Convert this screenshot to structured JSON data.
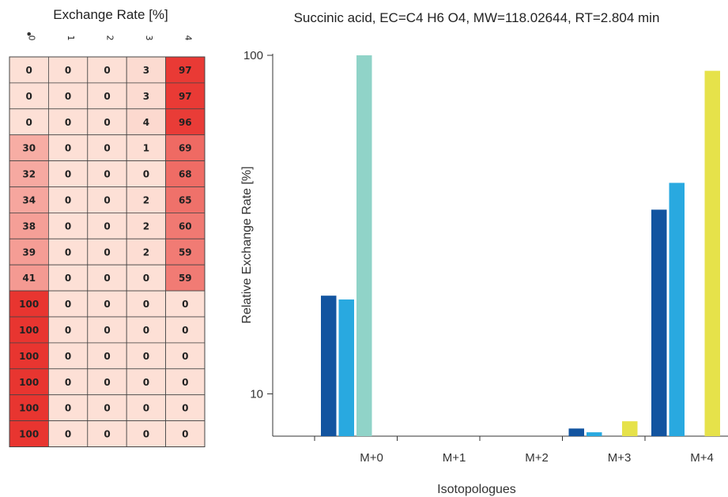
{
  "chart_data": [
    {
      "type": "heatmap",
      "title": "Exchange Rate [%]",
      "columns": [
        "0",
        "1",
        "2",
        "3",
        "4"
      ],
      "marked_column": "0",
      "rows": [
        [
          0,
          0,
          0,
          3,
          97
        ],
        [
          0,
          0,
          0,
          3,
          97
        ],
        [
          0,
          0,
          0,
          4,
          96
        ],
        [
          30,
          0,
          0,
          1,
          69
        ],
        [
          32,
          0,
          0,
          0,
          68
        ],
        [
          34,
          0,
          0,
          2,
          65
        ],
        [
          38,
          0,
          0,
          2,
          60
        ],
        [
          39,
          0,
          0,
          2,
          59
        ],
        [
          41,
          0,
          0,
          0,
          59
        ],
        [
          100,
          0,
          0,
          0,
          0
        ],
        [
          100,
          0,
          0,
          0,
          0
        ],
        [
          100,
          0,
          0,
          0,
          0
        ],
        [
          100,
          0,
          0,
          0,
          0
        ],
        [
          100,
          0,
          0,
          0,
          0
        ],
        [
          100,
          0,
          0,
          0,
          0
        ]
      ],
      "color_scale": [
        "#fde0d6",
        "#e83530"
      ]
    },
    {
      "type": "bar",
      "title": "Succinic acid, EC=C4 H6 O4, MW=118.02644, RT=2.804 min",
      "xlabel": "Isotopologues",
      "ylabel": "Relative Exchange Rate [%]",
      "yscale": "log",
      "ylim": [
        7.5,
        100
      ],
      "yticks": [
        10,
        100
      ],
      "categories": [
        "M+0",
        "M+1",
        "M+2",
        "M+3",
        "M+4"
      ],
      "series": [
        {
          "color": "#1254a0",
          "values": [
            19.5,
            0,
            0,
            7.9,
            35
          ]
        },
        {
          "color": "#29a9e0",
          "values": [
            19.0,
            0,
            0,
            7.7,
            42
          ]
        },
        {
          "color": "#90d3c8",
          "values": [
            100,
            0,
            0,
            0,
            0
          ]
        },
        {
          "color": "#e6e24a",
          "values": [
            0,
            0,
            0,
            8.3,
            90
          ]
        }
      ]
    }
  ]
}
